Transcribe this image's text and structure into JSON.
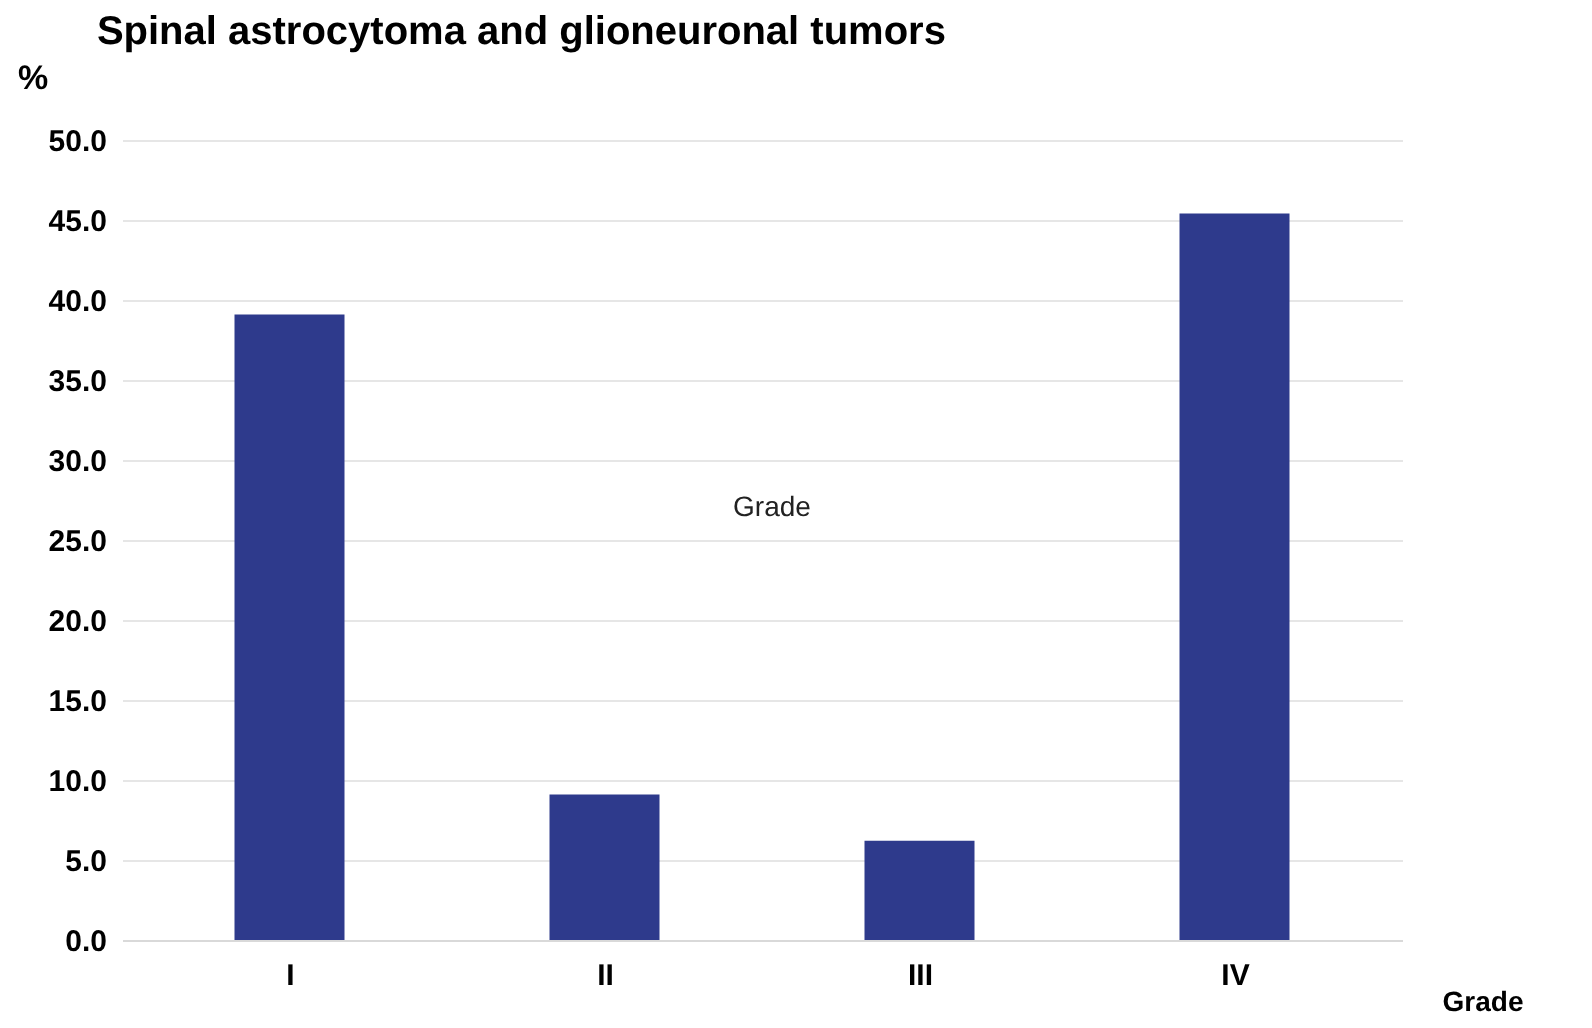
{
  "chart_data": {
    "type": "bar",
    "title": "Spinal astrocytoma and glioneuronal tumors",
    "xlabel": "Grade",
    "ylabel": "%",
    "categories": [
      "I",
      "II",
      "III",
      "IV"
    ],
    "values": [
      39.1,
      9.1,
      6.2,
      45.4
    ],
    "color": "#2e3a8c",
    "ylim": [
      0,
      50
    ],
    "yticks": [
      {
        "value": 0,
        "label": "0.0"
      },
      {
        "value": 5,
        "label": "5.0"
      },
      {
        "value": 10,
        "label": "10.0"
      },
      {
        "value": 15,
        "label": "15.0"
      },
      {
        "value": 20,
        "label": "20.0"
      },
      {
        "value": 25,
        "label": "25.0"
      },
      {
        "value": 30,
        "label": "30.0"
      },
      {
        "value": 35,
        "label": "35.0"
      },
      {
        "value": 40,
        "label": "40.0"
      },
      {
        "value": 45,
        "label": "45.0"
      },
      {
        "value": 50,
        "label": "50.0"
      }
    ],
    "grid": "y",
    "annotations": [
      "Grade"
    ]
  }
}
